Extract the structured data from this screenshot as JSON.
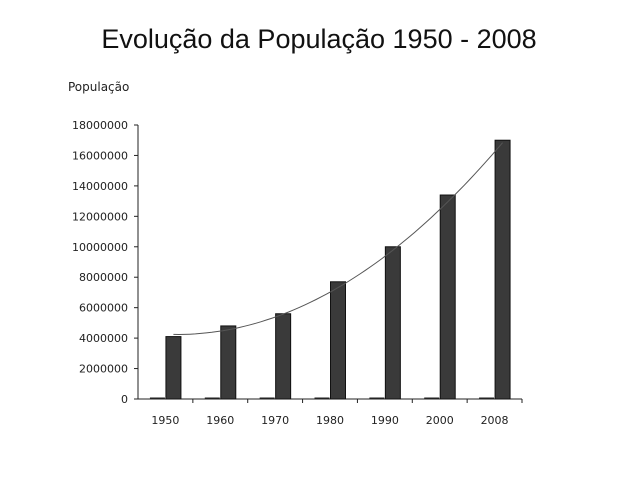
{
  "slide": {
    "title": "Evolução da População 1950 - 2008"
  },
  "chart_data": {
    "type": "bar",
    "title": "",
    "ylabel": "População",
    "xlabel": "",
    "categories": [
      "1950",
      "1960",
      "1970",
      "1980",
      "1990",
      "2000",
      "2008"
    ],
    "series": [
      {
        "values": [
          0,
          0,
          0,
          0,
          0,
          0,
          0
        ],
        "color": "#222222"
      },
      {
        "values": [
          4100000,
          4800000,
          5600000,
          7700000,
          10000000,
          13400000,
          17000000
        ],
        "color": "#3a3a3a"
      }
    ],
    "trendline": {
      "type": "polynomial",
      "color": "#555555"
    },
    "ylim": [
      0,
      18000000
    ],
    "yticks": [
      "0",
      "2000000",
      "4000000",
      "6000000",
      "8000000",
      "10000000",
      "12000000",
      "14000000",
      "16000000",
      "18000000"
    ],
    "grid": false,
    "legend": "none"
  }
}
